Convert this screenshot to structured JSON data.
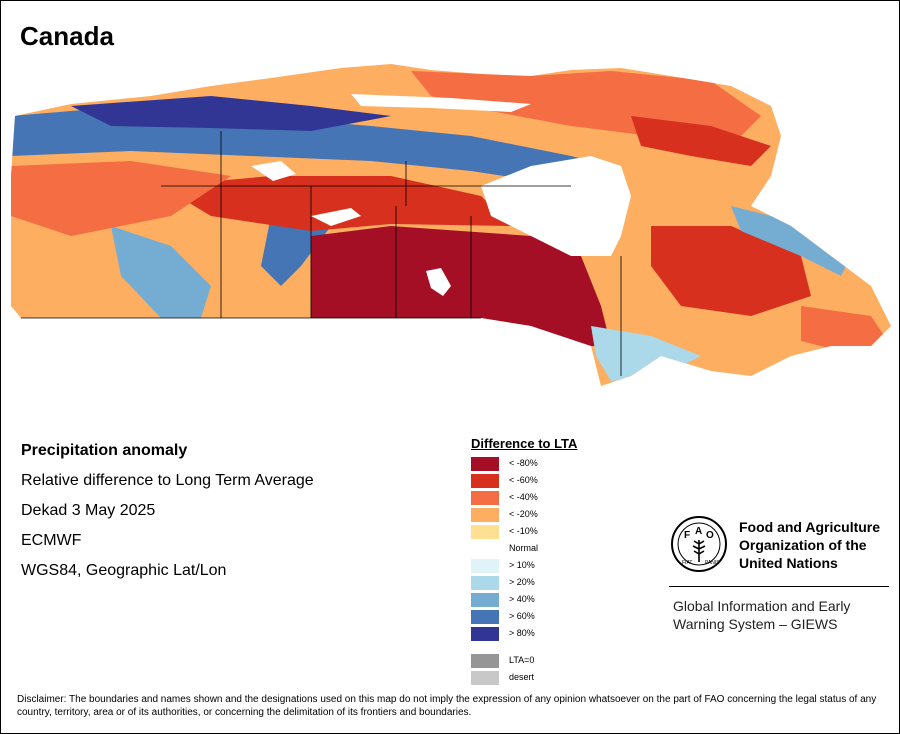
{
  "title": "Canada",
  "info": {
    "heading": "Precipitation anomaly",
    "subtitle": "Relative difference to Long Term Average",
    "period": "Dekad 3 May 2025",
    "source": "ECMWF",
    "projection": "WGS84, Geographic Lat/Lon"
  },
  "legend": {
    "title": "Difference to LTA",
    "dry": [
      {
        "label": "< -80%",
        "color": "#a50f26"
      },
      {
        "label": "< -60%",
        "color": "#d7301f"
      },
      {
        "label": "< -40%",
        "color": "#f46d43"
      },
      {
        "label": "< -20%",
        "color": "#fdae61"
      },
      {
        "label": "< -10%",
        "color": "#fee090"
      }
    ],
    "normal": "Normal",
    "wet": [
      {
        "label": "> 10%",
        "color": "#e0f3f8"
      },
      {
        "label": "> 20%",
        "color": "#abd9e9"
      },
      {
        "label": "> 40%",
        "color": "#74add1"
      },
      {
        "label": "> 60%",
        "color": "#4575b4"
      },
      {
        "label": "> 80%",
        "color": "#313695"
      }
    ],
    "special": [
      {
        "label": "LTA=0",
        "color": "#969696"
      },
      {
        "label": "desert",
        "color": "#c8c8c8"
      }
    ]
  },
  "logo": {
    "name": "Food and Agriculture Organization of the United Nations",
    "name_lines": [
      "Food and Agriculture",
      "Organization of the",
      "United Nations"
    ],
    "emblem_text": "FAO FIAT PANIS",
    "system": "Global Information and Early Warning System – GIEWS",
    "system_lines": [
      "Global Information and Early",
      "Warning System – GIEWS"
    ]
  },
  "disclaimer": "Disclaimer: The boundaries and names shown and the designations used on this map do not imply the expression of any opinion whatsoever on the part of FAO concerning the legal status of any country, territory, area or of its authorities, or concerning the delimitation of its frontiers and boundaries."
}
